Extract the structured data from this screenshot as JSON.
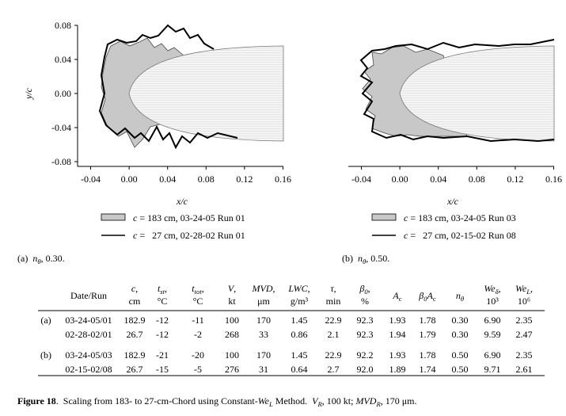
{
  "panels": [
    {
      "y_label": "y/c",
      "x_label": "x/c",
      "x_ticks": [
        "-0.04",
        "0.00",
        "0.04",
        "0.08",
        "0.12",
        "0.16"
      ],
      "y_ticks": [
        "0.08",
        "0.04",
        "0.00",
        "-0.04",
        "-0.08"
      ],
      "legend": [
        [
          {
            "t": "c",
            "i": true
          },
          {
            "t": " = 183 cm, 03-24-05 Run 01"
          }
        ],
        [
          {
            "t": "c",
            "i": true
          },
          {
            "t": " =   27 cm, 02-28-02 Run 01"
          }
        ]
      ],
      "caption": [
        {
          "t": "(a)  "
        },
        {
          "t": "n",
          "i": true
        },
        {
          "t": "θ",
          "i": true,
          "sub": true
        },
        {
          "t": ", 0.30."
        }
      ]
    },
    {
      "x_label": "x/c",
      "x_ticks": [
        "-0.04",
        "0.00",
        "0.04",
        "0.08",
        "0.12",
        "0.16"
      ],
      "legend": [
        [
          {
            "t": "c",
            "i": true
          },
          {
            "t": " = 183 cm, 03-24-05 Run 03"
          }
        ],
        [
          {
            "t": "c",
            "i": true
          },
          {
            "t": " =   27 cm, 02-15-02 Run 08"
          }
        ]
      ],
      "caption": [
        {
          "t": "(b)  "
        },
        {
          "t": "n",
          "i": true
        },
        {
          "t": "θ",
          "i": true,
          "sub": true
        },
        {
          "t": ", 0.50."
        }
      ]
    }
  ],
  "table": {
    "header": [
      {
        "parts": [
          {
            "t": "Date/Run"
          }
        ]
      },
      {
        "parts": [
          {
            "t": "c",
            "i": true
          },
          {
            "t": ","
          }
        ],
        "unit": "cm"
      },
      {
        "parts": [
          {
            "t": "t",
            "i": true
          },
          {
            "t": "st",
            "i": true,
            "sub": true
          },
          {
            "t": ","
          }
        ],
        "unit": "°C"
      },
      {
        "parts": [
          {
            "t": "t",
            "i": true
          },
          {
            "t": "tot",
            "i": true,
            "sub": true
          },
          {
            "t": ","
          }
        ],
        "unit": "°C"
      },
      {
        "parts": [
          {
            "t": "V",
            "i": true
          },
          {
            "t": ","
          }
        ],
        "unit": "kt"
      },
      {
        "parts": [
          {
            "t": "MVD",
            "i": true
          },
          {
            "t": ","
          }
        ],
        "unit": "μm"
      },
      {
        "parts": [
          {
            "t": "LWC",
            "i": true
          },
          {
            "t": ","
          }
        ],
        "unit": "g/m³"
      },
      {
        "parts": [
          {
            "t": "τ",
            "i": true
          },
          {
            "t": ","
          }
        ],
        "unit": "min"
      },
      {
        "parts": [
          {
            "t": "β",
            "i": true
          },
          {
            "t": "0",
            "i": true,
            "sub": true
          },
          {
            "t": ","
          }
        ],
        "unit": "%"
      },
      {
        "parts": [
          {
            "t": "A",
            "i": true
          },
          {
            "t": "c",
            "sub": true
          }
        ]
      },
      {
        "parts": [
          {
            "t": "β",
            "i": true
          },
          {
            "t": "0",
            "i": true,
            "sub": true
          },
          {
            "t": "A",
            "i": true
          },
          {
            "t": "c",
            "sub": true
          }
        ]
      },
      {
        "parts": [
          {
            "t": "n",
            "i": true
          },
          {
            "t": "θ",
            "i": true,
            "sub": true
          }
        ]
      },
      {
        "parts": [
          {
            "t": "We",
            "i": true
          },
          {
            "t": "δ",
            "i": true,
            "sub": true
          },
          {
            "t": ","
          }
        ],
        "unit": "10³"
      },
      {
        "parts": [
          {
            "t": "We",
            "i": true
          },
          {
            "t": "L",
            "i": true,
            "sub": true
          },
          {
            "t": ","
          }
        ],
        "unit": "10⁶"
      }
    ],
    "groups": [
      {
        "label": "(a)",
        "rows": [
          [
            "03-24-05/01",
            "182.9",
            "-12",
            "-11",
            "100",
            "170",
            "1.45",
            "22.9",
            "92.3",
            "1.93",
            "1.78",
            "0.30",
            "6.90",
            "2.35"
          ],
          [
            "02-28-02/01",
            "26.7",
            "-12",
            "-2",
            "268",
            "33",
            "0.86",
            "2.1",
            "92.3",
            "1.94",
            "1.79",
            "0.30",
            "9.59",
            "2.47"
          ]
        ]
      },
      {
        "label": "(b)",
        "rows": [
          [
            "03-24-05/03",
            "182.9",
            "-21",
            "-20",
            "100",
            "170",
            "1.45",
            "22.9",
            "92.2",
            "1.93",
            "1.78",
            "0.50",
            "6.90",
            "2.35"
          ],
          [
            "02-15-02/08",
            "26.7",
            "-15",
            "-5",
            "276",
            "31",
            "0.64",
            "2.7",
            "92.0",
            "1.89",
            "1.74",
            "0.50",
            "9.71",
            "2.61"
          ]
        ]
      }
    ]
  },
  "figure_caption": [
    {
      "t": "Figure 18",
      "b": true
    },
    {
      "t": ".  Scaling from 183- to 27-cm-Chord using Constant-"
    },
    {
      "t": "We",
      "i": true
    },
    {
      "t": "L",
      "i": true,
      "sub": true
    },
    {
      "t": " Method.  "
    },
    {
      "t": "V",
      "i": true
    },
    {
      "t": "R",
      "i": true,
      "sub": true
    },
    {
      "t": ", 100 kt; "
    },
    {
      "t": "MVD",
      "i": true
    },
    {
      "t": "R",
      "i": true,
      "sub": true
    },
    {
      "t": ", 170 μm."
    }
  ]
}
